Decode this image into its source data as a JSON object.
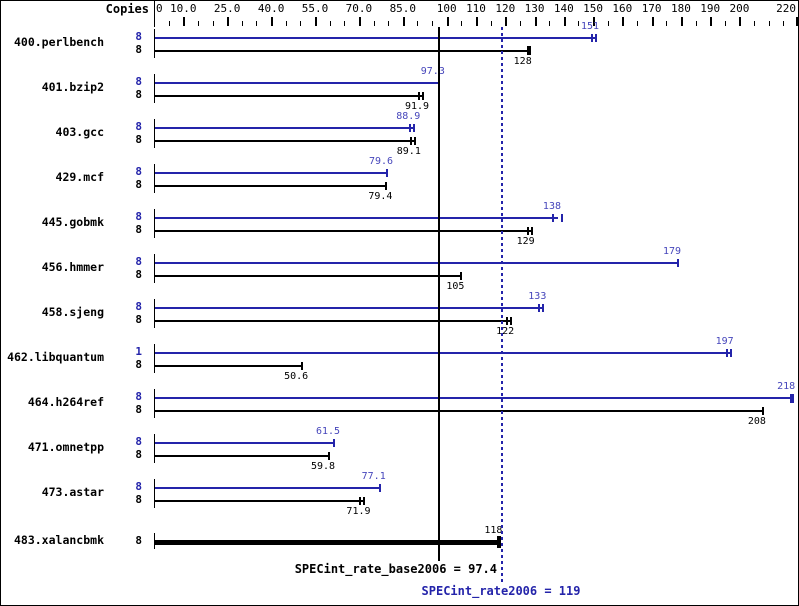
{
  "chart_data": {
    "type": "bar",
    "orientation": "horizontal",
    "copies_header": "Copies",
    "axis_range": [
      0,
      220
    ],
    "minor_tick_step": 5,
    "axis_tick_labels": [
      "0",
      "10.0",
      "25.0",
      "40.0",
      "55.0",
      "70.0",
      "85.0",
      "100",
      "110",
      "120",
      "130",
      "140",
      "150",
      "160",
      "170",
      "180",
      "190",
      "200",
      "220"
    ],
    "grid": "off",
    "legend": "none",
    "rate_color": "#2424aa",
    "rate_text_color": "#4646bb",
    "base_color": "#000000",
    "benchmarks": [
      {
        "name": "400.perlbench",
        "bars": [
          {
            "series": "rate",
            "copies": "8",
            "value": 151,
            "label": "151",
            "marker": "double"
          },
          {
            "series": "base",
            "copies": "8",
            "value": 128,
            "label": "128",
            "marker": "thick"
          }
        ]
      },
      {
        "name": "401.bzip2",
        "bars": [
          {
            "series": "rate",
            "copies": "8",
            "value": 97.3,
            "label": "97.3",
            "marker": "single"
          },
          {
            "series": "base",
            "copies": "8",
            "value": 91.9,
            "label": "91.9",
            "marker": "double"
          }
        ]
      },
      {
        "name": "403.gcc",
        "bars": [
          {
            "series": "rate",
            "copies": "8",
            "value": 88.9,
            "label": "88.9",
            "marker": "double"
          },
          {
            "series": "base",
            "copies": "8",
            "value": 89.1,
            "label": "89.1",
            "marker": "double"
          }
        ]
      },
      {
        "name": "429.mcf",
        "bars": [
          {
            "series": "rate",
            "copies": "8",
            "value": 79.6,
            "label": "79.6",
            "marker": "single"
          },
          {
            "series": "base",
            "copies": "8",
            "value": 79.4,
            "label": "79.4",
            "marker": "single"
          }
        ]
      },
      {
        "name": "445.gobmk",
        "bars": [
          {
            "series": "rate",
            "copies": "8",
            "value": 138,
            "label": "138",
            "marker": "wide"
          },
          {
            "series": "base",
            "copies": "8",
            "value": 129,
            "label": "129",
            "marker": "double"
          }
        ]
      },
      {
        "name": "456.hmmer",
        "bars": [
          {
            "series": "rate",
            "copies": "8",
            "value": 179,
            "label": "179",
            "marker": "single"
          },
          {
            "series": "base",
            "copies": "8",
            "value": 105,
            "label": "105",
            "marker": "single"
          }
        ]
      },
      {
        "name": "458.sjeng",
        "bars": [
          {
            "series": "rate",
            "copies": "8",
            "value": 133,
            "label": "133",
            "marker": "double"
          },
          {
            "series": "base",
            "copies": "8",
            "value": 122,
            "label": "122",
            "marker": "double"
          }
        ]
      },
      {
        "name": "462.libquantum",
        "bars": [
          {
            "series": "rate",
            "copies": "1",
            "value": 197,
            "label": "197",
            "marker": "double"
          },
          {
            "series": "base",
            "copies": "8",
            "value": 50.6,
            "label": "50.6",
            "marker": "single"
          }
        ]
      },
      {
        "name": "464.h264ref",
        "bars": [
          {
            "series": "rate",
            "copies": "8",
            "value": 218,
            "label": "218",
            "marker": "thick"
          },
          {
            "series": "base",
            "copies": "8",
            "value": 208,
            "label": "208",
            "marker": "single"
          }
        ]
      },
      {
        "name": "471.omnetpp",
        "bars": [
          {
            "series": "rate",
            "copies": "8",
            "value": 61.5,
            "label": "61.5",
            "marker": "single"
          },
          {
            "series": "base",
            "copies": "8",
            "value": 59.8,
            "label": "59.8",
            "marker": "single"
          }
        ]
      },
      {
        "name": "473.astar",
        "bars": [
          {
            "series": "rate",
            "copies": "8",
            "value": 77.1,
            "label": "77.1",
            "marker": "single"
          },
          {
            "series": "base",
            "copies": "8",
            "value": 71.9,
            "label": "71.9",
            "marker": "double"
          }
        ]
      },
      {
        "name": "483.xalancbmk",
        "bars": [
          {
            "series": "base",
            "copies": "8",
            "value": 118,
            "label": "118",
            "marker": "thick",
            "thick_bar": true,
            "label_position": "above"
          }
        ]
      }
    ],
    "reference_lines": [
      {
        "style": "solid",
        "series": "base",
        "value": 97.4,
        "label": "SPECint_rate_base2006 = 97.4"
      },
      {
        "style": "dotted",
        "series": "rate",
        "value": 119,
        "label": "SPECint_rate2006 = 119"
      }
    ]
  }
}
